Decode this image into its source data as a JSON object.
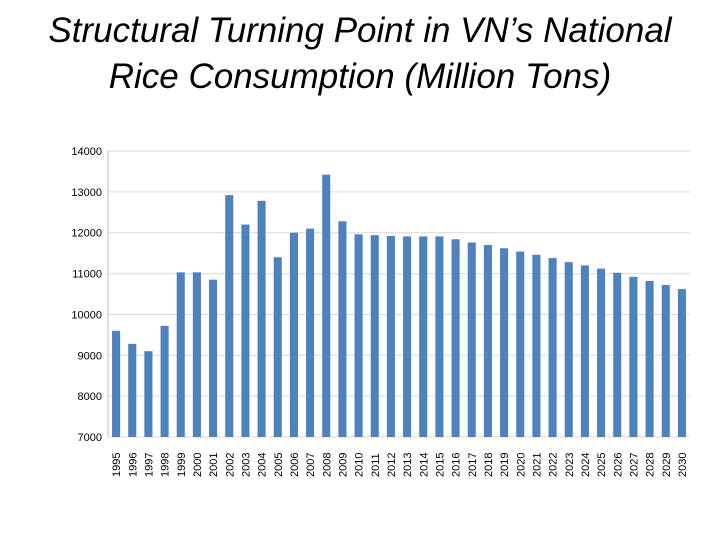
{
  "slide": {
    "title_line1": "Structural Turning Point in VN’s National",
    "title_line2": "Rice Consumption (Million Tons)"
  },
  "chart_data": {
    "type": "bar",
    "title": "Structural Turning Point in VN’s National Rice Consumption (Million Tons)",
    "xlabel": "",
    "ylabel": "",
    "ylim": [
      7000,
      14000
    ],
    "yticks": [
      7000,
      8000,
      9000,
      10000,
      11000,
      12000,
      13000,
      14000
    ],
    "grid": true,
    "bar_color": "#4f81bd",
    "grid_color": "#d9d9d9",
    "categories": [
      "1995",
      "1996",
      "1997",
      "1998",
      "1999",
      "2000",
      "2001",
      "2002",
      "2003",
      "2004",
      "2005",
      "2006",
      "2007",
      "2008",
      "2009",
      "2010",
      "2011",
      "2012",
      "2013",
      "2014",
      "2015",
      "2016",
      "2017",
      "2018",
      "2019",
      "2020",
      "2021",
      "2022",
      "2023",
      "2024",
      "2025",
      "2026",
      "2027",
      "2028",
      "2029",
      "2030"
    ],
    "values": [
      9600,
      9280,
      9100,
      9720,
      11030,
      11030,
      10850,
      12920,
      12200,
      12780,
      11400,
      12000,
      12100,
      13420,
      12280,
      11960,
      11940,
      11920,
      11910,
      11910,
      11910,
      11840,
      11760,
      11700,
      11620,
      11540,
      11460,
      11380,
      11280,
      11200,
      11120,
      11020,
      10920,
      10820,
      10720,
      10620
    ]
  }
}
